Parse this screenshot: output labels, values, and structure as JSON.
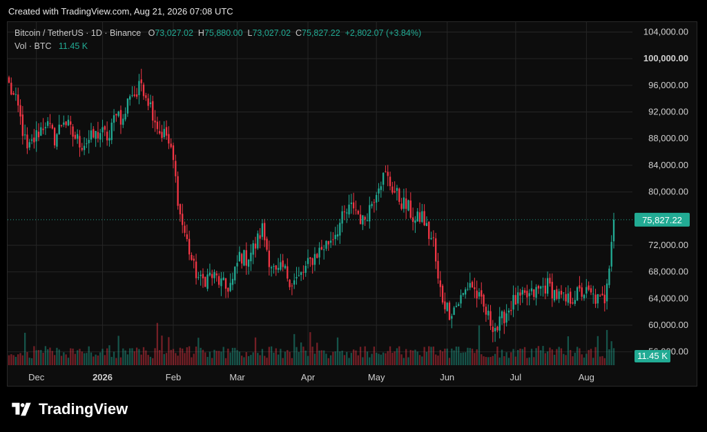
{
  "credit": "Created with TradingView.com, Aug 21, 2026 07:08 UTC",
  "legend": {
    "symbol": "Bitcoin / TetherUS · 1D · Binance",
    "o_label": "O",
    "o_value": "73,027.02",
    "h_label": "H",
    "h_value": "75,880.00",
    "l_label": "L",
    "l_value": "73,027.02",
    "c_label": "C",
    "c_value": "75,827.22",
    "change": "+2,802.07 (+3.84%)",
    "vol_label": "Vol · BTC",
    "vol_value": "11.45 K"
  },
  "brand": "TradingView",
  "colors": {
    "up": "#22ab94",
    "down": "#f23645",
    "grid": "#262626",
    "axis_text": "#d0d0d0"
  },
  "chart_data": {
    "type": "candlestick",
    "symbol": "Bitcoin / TetherUS",
    "interval": "1D",
    "exchange": "Binance",
    "y_ticks": [
      "104,000.00",
      "100,000.00",
      "96,000.00",
      "92,000.00",
      "88,000.00",
      "84,000.00",
      "80,000.00",
      "72,000.00",
      "68,000.00",
      "64,000.00",
      "60,000.00",
      "56,000.00"
    ],
    "y_tick_values": [
      104000,
      100000,
      96000,
      92000,
      88000,
      84000,
      80000,
      72000,
      68000,
      64000,
      60000,
      56000
    ],
    "ylim": [
      54000,
      105500
    ],
    "x_labels": [
      "Dec",
      "2026",
      "Feb",
      "Mar",
      "Apr",
      "May",
      "Jun",
      "Jul",
      "Aug"
    ],
    "x_label_index": [
      12,
      41,
      72,
      100,
      131,
      161,
      192,
      222,
      253
    ],
    "n_bars": 266,
    "last_price": "75,827.22",
    "last_price_value": 75827.22,
    "last_volume": "11.45 K",
    "last_volume_value": 11450,
    "close_path": [
      [
        0,
        96000
      ],
      [
        4,
        92500
      ],
      [
        8,
        86000
      ],
      [
        12,
        88500
      ],
      [
        16,
        90500
      ],
      [
        20,
        88000
      ],
      [
        24,
        91000
      ],
      [
        28,
        88500
      ],
      [
        32,
        87200
      ],
      [
        36,
        88000
      ],
      [
        40,
        89000
      ],
      [
        44,
        88000
      ],
      [
        47,
        92500
      ],
      [
        50,
        90500
      ],
      [
        53,
        95000
      ],
      [
        56,
        94500
      ],
      [
        58,
        96500
      ],
      [
        62,
        93000
      ],
      [
        66,
        89000
      ],
      [
        69,
        88500
      ],
      [
        72,
        84500
      ],
      [
        75,
        76500
      ],
      [
        78,
        72500
      ],
      [
        81,
        68500
      ],
      [
        84,
        66500
      ],
      [
        88,
        67500
      ],
      [
        91,
        67000
      ],
      [
        95,
        65500
      ],
      [
        98,
        66500
      ],
      [
        101,
        70500
      ],
      [
        104,
        70000
      ],
      [
        108,
        72000
      ],
      [
        111,
        74500
      ],
      [
        114,
        70000
      ],
      [
        117,
        67500
      ],
      [
        120,
        68500
      ],
      [
        124,
        66500
      ],
      [
        127,
        67000
      ],
      [
        130,
        68500
      ],
      [
        134,
        70500
      ],
      [
        137,
        71500
      ],
      [
        140,
        72500
      ],
      [
        143,
        74000
      ],
      [
        147,
        76500
      ],
      [
        151,
        78000
      ],
      [
        155,
        75500
      ],
      [
        159,
        78500
      ],
      [
        162,
        81500
      ],
      [
        165,
        82500
      ],
      [
        169,
        80000
      ],
      [
        172,
        78500
      ],
      [
        175,
        77500
      ],
      [
        178,
        75500
      ],
      [
        181,
        76500
      ],
      [
        184,
        73500
      ],
      [
        186,
        72500
      ],
      [
        188,
        66500
      ],
      [
        190,
        64000
      ],
      [
        193,
        62000
      ],
      [
        196,
        63000
      ],
      [
        199,
        64500
      ],
      [
        202,
        66500
      ],
      [
        205,
        64500
      ],
      [
        208,
        62500
      ],
      [
        211,
        60500
      ],
      [
        214,
        59500
      ],
      [
        217,
        61500
      ],
      [
        221,
        63500
      ],
      [
        225,
        64000
      ],
      [
        229,
        64500
      ],
      [
        233,
        65500
      ],
      [
        236,
        66000
      ],
      [
        240,
        64500
      ],
      [
        244,
        63500
      ],
      [
        248,
        64500
      ],
      [
        252,
        65000
      ],
      [
        256,
        64200
      ],
      [
        259,
        63600
      ],
      [
        261,
        64000
      ],
      [
        263,
        68500
      ],
      [
        264,
        72500
      ],
      [
        265,
        75827
      ]
    ]
  }
}
